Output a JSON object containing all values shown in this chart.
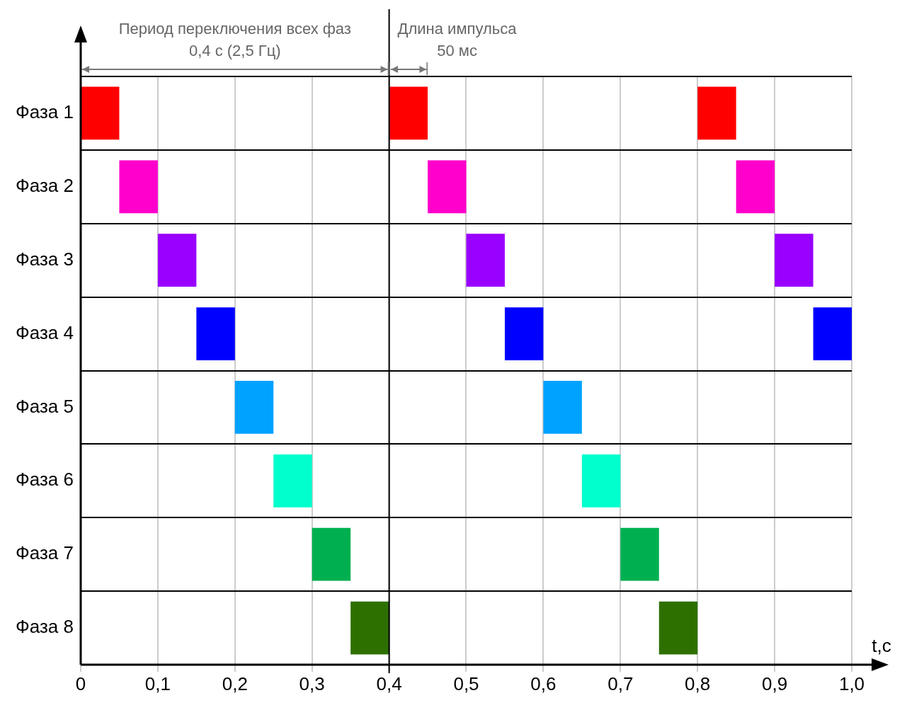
{
  "chart_data": {
    "type": "bar",
    "orientation": "horizontal",
    "xlabel": "t,c",
    "categories": [
      "Фаза 1",
      "Фаза 2",
      "Фаза 3",
      "Фаза 4",
      "Фаза 5",
      "Фаза 6",
      "Фаза 7",
      "Фаза 8"
    ],
    "series": [
      {
        "colors": [
          "#ff0000",
          "#ff00cc",
          "#9900ff",
          "#0000ff",
          "#00a2ff",
          "#00ffcc",
          "#00b050",
          "#2e7000"
        ],
        "base": [
          0,
          0.05,
          0.1,
          0.15,
          0.2,
          0.25,
          0.3,
          0.35
        ],
        "values": [
          0.05,
          0.05,
          0.05,
          0.05,
          0.05,
          0.05,
          0.05,
          0.05
        ]
      },
      {
        "colors": [
          "#ff0000",
          "#ff00cc",
          "#9900ff",
          "#0000ff",
          "#00a2ff",
          "#00ffcc",
          "#00b050",
          "#2e7000"
        ],
        "base": [
          0.4,
          0.45,
          0.5,
          0.55,
          0.6,
          0.65,
          0.7,
          0.75
        ],
        "values": [
          0.05,
          0.05,
          0.05,
          0.05,
          0.05,
          0.05,
          0.05,
          0.05
        ]
      },
      {
        "colors": [
          "#ff0000",
          "#ff00cc",
          "#9900ff",
          "#0000ff",
          "#00a2ff",
          "#00ffcc",
          "#00b050",
          "#2e7000"
        ],
        "base": [
          0.8,
          0.85,
          0.9,
          0.95,
          null,
          null,
          null,
          null
        ],
        "values": [
          0.05,
          0.05,
          0.05,
          0.05,
          null,
          null,
          null,
          null
        ]
      }
    ],
    "xlim": [
      0,
      1.0
    ],
    "xticks": [
      0,
      {
        "value": 0.1,
        "label": "0,1"
      },
      {
        "value": 0.2,
        "label": "0,2"
      },
      {
        "value": 0.3,
        "label": "0,3"
      },
      {
        "value": 0.4,
        "label": "0,4"
      },
      {
        "value": 0.5,
        "label": "0,5"
      },
      {
        "value": 0.6,
        "label": "0,6"
      },
      {
        "value": 0.7,
        "label": "0,7"
      },
      {
        "value": 0.8,
        "label": "0,8"
      },
      {
        "value": 0.9,
        "label": "0,9"
      },
      {
        "value": 1.0,
        "label": "1,0"
      }
    ],
    "grid": true,
    "legend": false,
    "ref_lines": [
      {
        "axis": "x",
        "value": 0.4,
        "color": "#000000"
      }
    ],
    "annotations": [
      "Период переключения всех фаз\n0,4 с (2,5 Гц)",
      "Длина импульса\n50 мс"
    ]
  }
}
